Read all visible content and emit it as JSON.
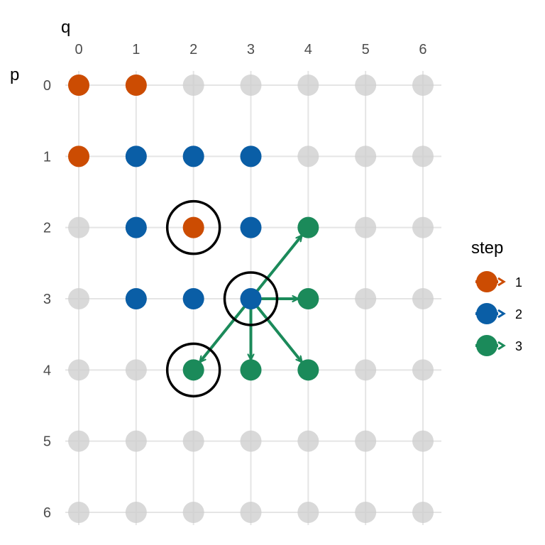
{
  "chart_data": {
    "type": "scatter",
    "x_title": "q",
    "y_title": "p",
    "x_ticks": [
      "0",
      "1",
      "2",
      "3",
      "4",
      "5",
      "6"
    ],
    "y_ticks": [
      "0",
      "1",
      "2",
      "3",
      "4",
      "5",
      "6"
    ],
    "x_range": [
      0,
      6
    ],
    "y_range": [
      0,
      6
    ],
    "x_axis_position": "top",
    "y_axis_reversed": true,
    "grid": true,
    "background_point_color": "#cccccc",
    "colors": {
      "1": "#cc4c02",
      "2": "#0a5ea6",
      "3": "#1b8a5a"
    },
    "points": [
      {
        "q": 0,
        "p": 0,
        "step": 1
      },
      {
        "q": 1,
        "p": 0,
        "step": 1
      },
      {
        "q": 0,
        "p": 1,
        "step": 1
      },
      {
        "q": 2,
        "p": 2,
        "step": 1
      },
      {
        "q": 1,
        "p": 1,
        "step": 2
      },
      {
        "q": 2,
        "p": 1,
        "step": 2
      },
      {
        "q": 3,
        "p": 1,
        "step": 2
      },
      {
        "q": 1,
        "p": 2,
        "step": 2
      },
      {
        "q": 3,
        "p": 2,
        "step": 2
      },
      {
        "q": 1,
        "p": 3,
        "step": 2
      },
      {
        "q": 2,
        "p": 3,
        "step": 2
      },
      {
        "q": 3,
        "p": 3,
        "step": 2
      },
      {
        "q": 4,
        "p": 2,
        "step": 3
      },
      {
        "q": 4,
        "p": 3,
        "step": 3
      },
      {
        "q": 2,
        "p": 4,
        "step": 3
      },
      {
        "q": 3,
        "p": 4,
        "step": 3
      },
      {
        "q": 4,
        "p": 4,
        "step": 3
      }
    ],
    "arrows": [
      {
        "from": {
          "q": 3,
          "p": 3
        },
        "to": {
          "q": 4,
          "p": 2
        },
        "step": 3
      },
      {
        "from": {
          "q": 3,
          "p": 3
        },
        "to": {
          "q": 4,
          "p": 3
        },
        "step": 3
      },
      {
        "from": {
          "q": 3,
          "p": 3
        },
        "to": {
          "q": 3,
          "p": 4
        },
        "step": 3
      },
      {
        "from": {
          "q": 3,
          "p": 3
        },
        "to": {
          "q": 4,
          "p": 4
        },
        "step": 3
      },
      {
        "from": {
          "q": 3,
          "p": 3
        },
        "to": {
          "q": 2,
          "p": 4
        },
        "step": 3
      }
    ],
    "circled": [
      {
        "q": 2,
        "p": 2
      },
      {
        "q": 3,
        "p": 3
      },
      {
        "q": 2,
        "p": 4
      }
    ],
    "legend": {
      "title": "step",
      "placement": "right",
      "items": [
        {
          "label": "1",
          "step": 1
        },
        {
          "label": "2",
          "step": 2
        },
        {
          "label": "3",
          "step": 3
        }
      ]
    }
  }
}
